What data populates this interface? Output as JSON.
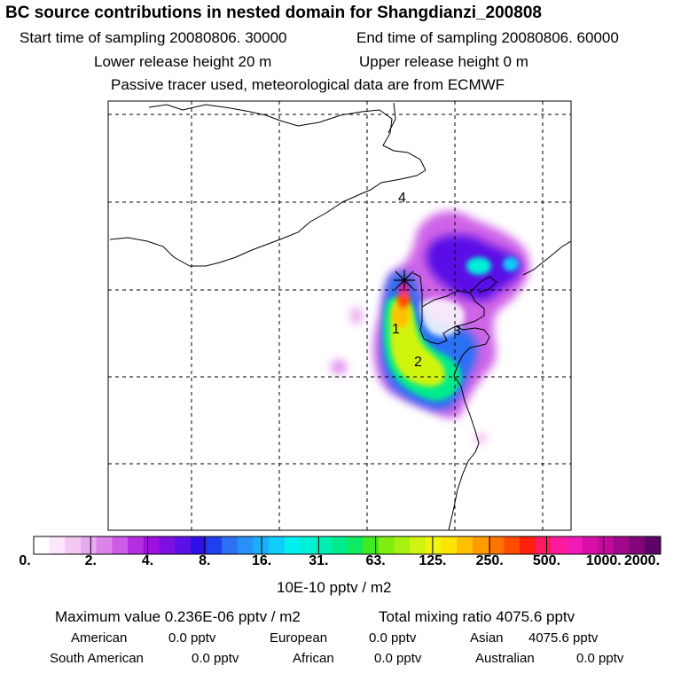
{
  "title": "BC  source contributions in nested domain for Shangdianzi_200808",
  "sampling": {
    "start": "Start time of sampling 20080806. 30000",
    "end": "End time of sampling 20080806. 60000"
  },
  "release": {
    "lower": "Lower release height   20 m",
    "upper": "Upper release height    0 m"
  },
  "tracer_note": "Passive tracer used, meteorological data are from ECMWF",
  "map_labels": [
    "1",
    "2",
    "3",
    "4"
  ],
  "colorbar": {
    "ticks": [
      "0.",
      "2.",
      "4.",
      "8.",
      "16.",
      "31.",
      "63.",
      "125.",
      "250.",
      "500.",
      "1000.",
      "2000."
    ],
    "colors": [
      "#ffffff",
      "#fbe6fb",
      "#f3c8f3",
      "#e9a9ef",
      "#dc84ea",
      "#cc5ce6",
      "#b52ee2",
      "#9c10e0",
      "#7c10e2",
      "#5a10e6",
      "#3010ea",
      "#2040f0",
      "#2c70f4",
      "#2890f6",
      "#1ab0f8",
      "#10cefa",
      "#00f0f0",
      "#00f0d8",
      "#00eeb4",
      "#00ec8c",
      "#10ea60",
      "#40ea20",
      "#80ee10",
      "#a8f010",
      "#d0f410",
      "#f0f410",
      "#ffe400",
      "#ffc000",
      "#ff9c00",
      "#ff7400",
      "#ff4c00",
      "#ff2010",
      "#ff1a60",
      "#ff1a9e",
      "#f01ab4",
      "#d80ea8",
      "#c00a9c",
      "#a0088c",
      "#80067a",
      "#5c0466"
    ],
    "unit": "10E-10 pptv / m2"
  },
  "chart_data": {
    "type": "heatmap",
    "title": "BC  source contributions in nested domain for Shangdianzi_200808",
    "colorbar_ticks": [
      0,
      2,
      4,
      8,
      16,
      31,
      63,
      125,
      250,
      500,
      1000,
      2000
    ],
    "colorbar_unit": "10E-10 pptv / m2",
    "maximum_value": "0.236E-06",
    "total_mixing_ratio_pptv": 4075.6,
    "grid": true
  },
  "stats": {
    "maximum": "Maximum value  0.236E-06 pptv / m2",
    "total": "Total mixing ratio     4075.6 pptv"
  },
  "regions": {
    "american_label": "American",
    "american_value": "0.0 pptv",
    "european_label": "European",
    "european_value": "0.0 pptv",
    "asian_label": "Asian",
    "asian_value": "4075.6 pptv",
    "south_american_label": "South American",
    "south_american_value": "0.0 pptv",
    "african_label": "African",
    "african_value": "0.0 pptv",
    "australian_label": "Australian",
    "australian_value": "0.0 pptv"
  }
}
